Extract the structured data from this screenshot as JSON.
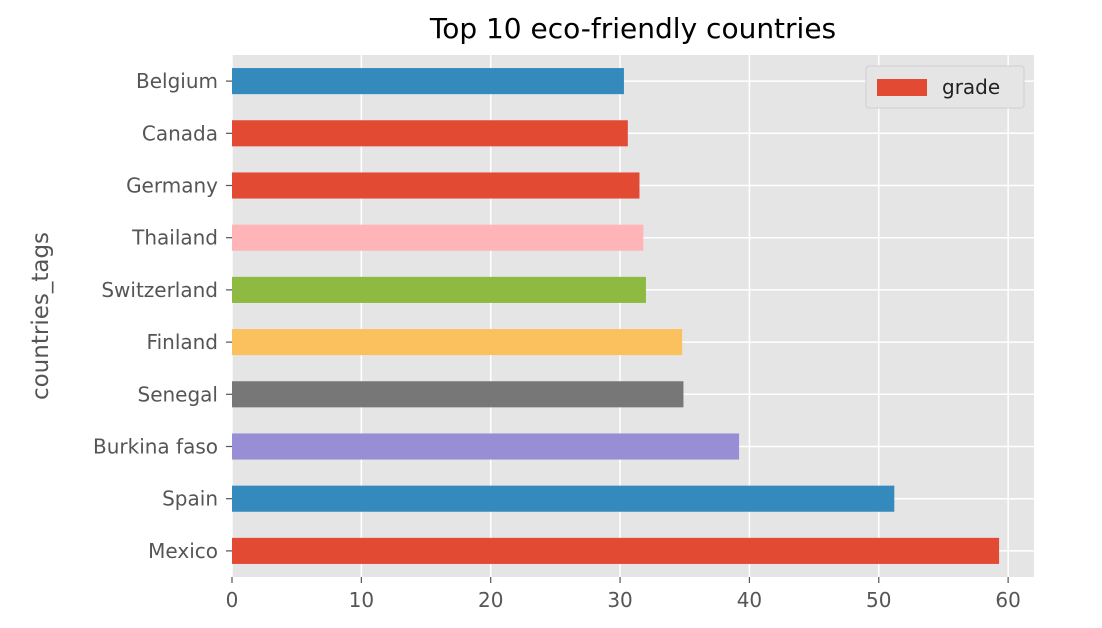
{
  "chart_data": {
    "type": "bar",
    "orientation": "horizontal",
    "title": "Top 10 eco-friendly countries",
    "xlabel": "",
    "ylabel": "countries_tags",
    "categories": [
      "Mexico",
      "Spain",
      "Burkina faso",
      "Senegal",
      "Finland",
      "Switzerland",
      "Thailand",
      "Germany",
      "Canada",
      "Belgium"
    ],
    "series": [
      {
        "name": "grade",
        "values": [
          59.3,
          51.2,
          39.2,
          34.9,
          34.8,
          32.0,
          31.8,
          31.5,
          30.6,
          30.3
        ]
      }
    ],
    "bar_colors": [
      "#E24A33",
      "#348ABD",
      "#988ED5",
      "#777777",
      "#FBC15E",
      "#8EBA42",
      "#FFB5B8",
      "#E24A33",
      "#E24A33",
      "#348ABD"
    ],
    "legend_color": "#E24A33",
    "xlim": [
      0,
      62
    ],
    "xticks": [
      0,
      10,
      20,
      30,
      40,
      50,
      60
    ],
    "grid": true,
    "legend_position": "top-right",
    "background_color": "#E5E5E5"
  }
}
